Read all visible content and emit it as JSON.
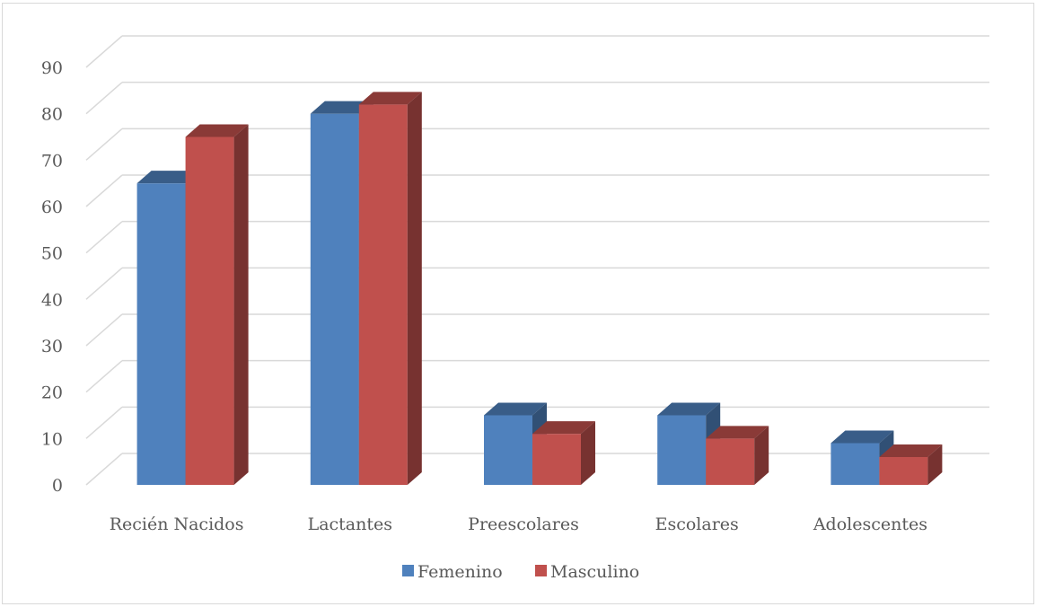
{
  "chart_data": {
    "type": "bar",
    "categories": [
      "Recién Nacidos",
      "Lactantes",
      "Preescolares",
      "Escolares",
      "Adolescentes"
    ],
    "series": [
      {
        "name": "Femenino",
        "values": [
          65,
          80,
          15,
          15,
          9
        ],
        "color": "#4f81bd"
      },
      {
        "name": "Masculino",
        "values": [
          75,
          82,
          11,
          10,
          6
        ],
        "color": "#c0504d"
      }
    ],
    "ylim": [
      0,
      90
    ],
    "yticks": [
      0,
      10,
      20,
      30,
      40,
      50,
      60,
      70,
      80,
      90
    ],
    "grid": true,
    "legend_position": "bottom",
    "style": "3d-clustered-column"
  }
}
